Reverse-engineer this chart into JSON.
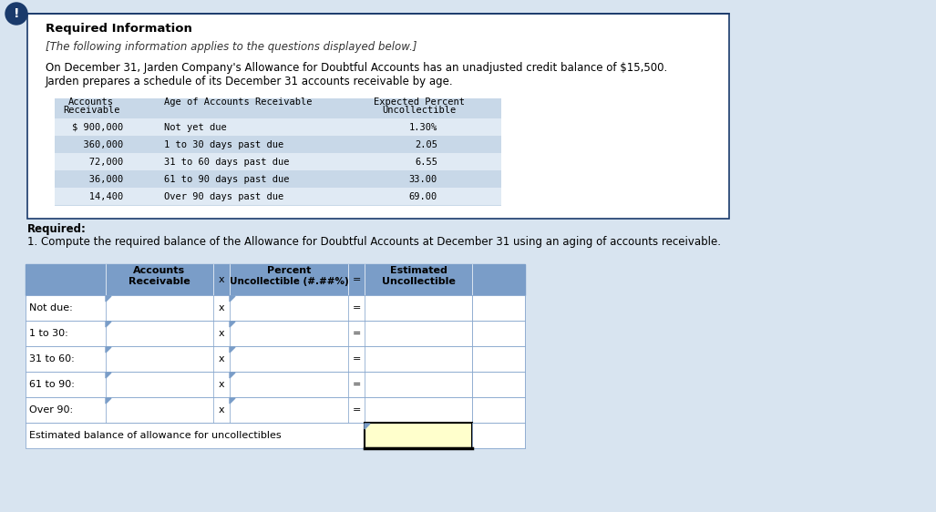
{
  "title_required_info": "Required Information",
  "subtitle_italic": "[The following information applies to the questions displayed below.]",
  "para1": "On December 31, Jarden Company's Allowance for Doubtful Accounts has an unadjusted credit balance of $15,500.",
  "para2": "Jarden prepares a schedule of its December 31 accounts receivable by age.",
  "info_table_rows": [
    [
      "$ 900,000",
      "Not yet due",
      "1.30%"
    ],
    [
      "  360,000",
      "1 to 30 days past due",
      "2.05"
    ],
    [
      "   72,000",
      "31 to 60 days past due",
      "6.55"
    ],
    [
      "   36,000",
      "61 to 90 days past due",
      "33.00"
    ],
    [
      "   14,400",
      "Over 90 days past due",
      "69.00"
    ]
  ],
  "required_label": "Required:",
  "required_text": "1. Compute the required balance of the Allowance for Doubtful Accounts at December 31 using an aging of accounts receivable.",
  "answer_rows": [
    "Not due:",
    "1 to 30:",
    "31 to 60:",
    "61 to 90:",
    "Over 90:"
  ],
  "last_row_label": "Estimated balance of allowance for uncollectibles",
  "last_row_highlight": "#FFFFCC",
  "header_bg": "#7A9DC8",
  "table_border": "#7A9DC8",
  "row_border": "#AABBCC",
  "icon_bg": "#1A3A6B",
  "box_border_color": "#1A3A6B",
  "info_tbl_header_bg": "#C8D8E8",
  "info_tbl_alt_bg": "#E0EAF4",
  "outer_bg": "#D8E4F0",
  "white": "#FFFFFF",
  "black": "#000000",
  "mono_font": "monospace",
  "sans_font": "DejaVu Sans"
}
